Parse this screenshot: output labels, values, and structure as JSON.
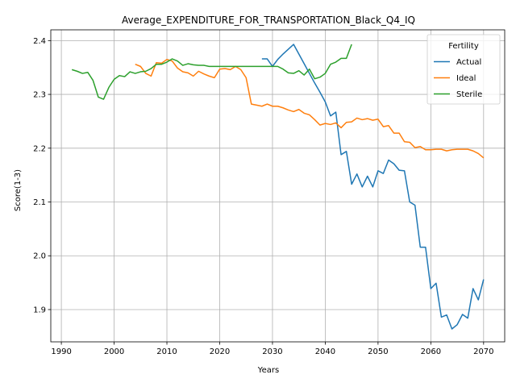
{
  "chart_data": {
    "type": "line",
    "title": "Average_EXPENDITURE_FOR_TRANSPORTATION_Black_Q4_IQ",
    "xlabel": "Years",
    "ylabel": "Score(1-3)",
    "xlim": [
      1988,
      2074
    ],
    "ylim": [
      1.84,
      2.42
    ],
    "xticks": [
      1990,
      2000,
      2010,
      2020,
      2030,
      2040,
      2050,
      2060,
      2070
    ],
    "yticks": [
      1.9,
      2.0,
      2.1,
      2.2,
      2.3,
      2.4
    ],
    "ytick_labels": [
      "1.9",
      "2.0",
      "2.1",
      "2.2",
      "2.3",
      "2.4"
    ],
    "grid": true,
    "legend": {
      "title": "Fertility",
      "position": "top-right"
    },
    "series": [
      {
        "name": "Actual",
        "color": "#1f77b4",
        "x": [
          2028,
          2029,
          2030,
          2031,
          2032,
          2033,
          2034,
          2035,
          2036,
          2037,
          2038,
          2039,
          2040,
          2041,
          2042,
          2043,
          2044,
          2045,
          2046,
          2047,
          2048,
          2049,
          2050,
          2051,
          2052,
          2053,
          2054,
          2055,
          2056,
          2057,
          2058,
          2059,
          2060,
          2061,
          2062,
          2063,
          2064,
          2065,
          2066,
          2067,
          2068,
          2069,
          2070
        ],
        "values": [
          2.366,
          2.366,
          2.352,
          2.365,
          2.375,
          2.384,
          2.393,
          2.375,
          2.357,
          2.339,
          2.321,
          2.304,
          2.286,
          2.26,
          2.267,
          2.188,
          2.194,
          2.133,
          2.152,
          2.128,
          2.148,
          2.128,
          2.158,
          2.153,
          2.178,
          2.171,
          2.159,
          2.158,
          2.1,
          2.094,
          2.016,
          2.016,
          1.939,
          1.949,
          1.886,
          1.89,
          1.864,
          1.872,
          1.891,
          1.884,
          1.939,
          1.918,
          1.956
        ]
      },
      {
        "name": "Ideal",
        "color": "#ff7f0e",
        "x": [
          2004,
          2005,
          2006,
          2007,
          2008,
          2009,
          2010,
          2011,
          2012,
          2013,
          2014,
          2015,
          2016,
          2017,
          2018,
          2019,
          2020,
          2021,
          2022,
          2023,
          2024,
          2025,
          2026,
          2027,
          2028,
          2029,
          2030,
          2031,
          2032,
          2033,
          2034,
          2035,
          2036,
          2037,
          2038,
          2039,
          2040,
          2041,
          2042,
          2043,
          2044,
          2045,
          2046,
          2047,
          2048,
          2049,
          2050,
          2051,
          2052,
          2053,
          2054,
          2055,
          2056,
          2057,
          2058,
          2059,
          2060,
          2061,
          2062,
          2063,
          2064,
          2065,
          2066,
          2067,
          2068,
          2069,
          2070
        ],
        "values": [
          2.356,
          2.352,
          2.339,
          2.334,
          2.359,
          2.358,
          2.365,
          2.362,
          2.349,
          2.342,
          2.34,
          2.334,
          2.343,
          2.338,
          2.334,
          2.331,
          2.347,
          2.348,
          2.346,
          2.352,
          2.346,
          2.331,
          2.282,
          2.28,
          2.278,
          2.282,
          2.278,
          2.278,
          2.275,
          2.271,
          2.268,
          2.272,
          2.265,
          2.262,
          2.253,
          2.243,
          2.246,
          2.244,
          2.247,
          2.238,
          2.248,
          2.249,
          2.256,
          2.253,
          2.255,
          2.252,
          2.254,
          2.24,
          2.242,
          2.228,
          2.228,
          2.212,
          2.211,
          2.201,
          2.203,
          2.197,
          2.197,
          2.198,
          2.198,
          2.195,
          2.197,
          2.198,
          2.198,
          2.198,
          2.195,
          2.19,
          2.182
        ]
      },
      {
        "name": "Sterile",
        "color": "#2ca02c",
        "x": [
          1992,
          1993,
          1994,
          1995,
          1996,
          1997,
          1998,
          1999,
          2000,
          2001,
          2002,
          2003,
          2004,
          2005,
          2006,
          2007,
          2008,
          2009,
          2010,
          2011,
          2012,
          2013,
          2014,
          2015,
          2016,
          2017,
          2018,
          2019,
          2020,
          2021,
          2022,
          2023,
          2024,
          2025,
          2026,
          2027,
          2028,
          2029,
          2030,
          2031,
          2032,
          2033,
          2034,
          2035,
          2036,
          2037,
          2038,
          2039,
          2040,
          2041,
          2042,
          2043,
          2044,
          2045
        ],
        "values": [
          2.346,
          2.343,
          2.339,
          2.341,
          2.326,
          2.295,
          2.291,
          2.313,
          2.328,
          2.335,
          2.333,
          2.342,
          2.339,
          2.342,
          2.343,
          2.348,
          2.356,
          2.356,
          2.36,
          2.366,
          2.362,
          2.354,
          2.357,
          2.355,
          2.354,
          2.354,
          2.352,
          2.352,
          2.352,
          2.352,
          2.352,
          2.352,
          2.352,
          2.352,
          2.352,
          2.352,
          2.352,
          2.352,
          2.352,
          2.352,
          2.347,
          2.34,
          2.339,
          2.344,
          2.336,
          2.347,
          2.329,
          2.332,
          2.339,
          2.356,
          2.36,
          2.367,
          2.367,
          2.393
        ]
      }
    ]
  }
}
